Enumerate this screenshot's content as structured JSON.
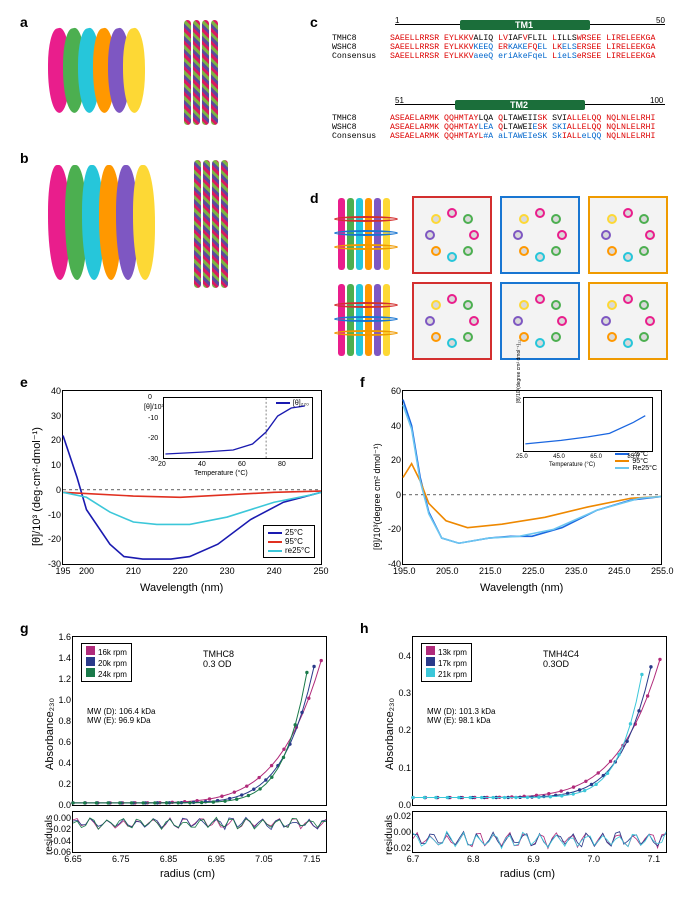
{
  "labels": {
    "a": "a",
    "b": "b",
    "c": "c",
    "d": "d",
    "e": "e",
    "f": "f",
    "g": "g",
    "h": "h"
  },
  "panelC": {
    "block1": {
      "start": "1",
      "end": "50",
      "tm": "TM1",
      "rows": [
        {
          "name": "TMHC8",
          "seq": [
            {
              "t": "SAEELLRRSR EYLKKV",
              "c": "#d00"
            },
            {
              "t": "ALIQ",
              "c": "#000"
            },
            {
              "t": " LV",
              "c": "#d00"
            },
            {
              "t": "IAF",
              "c": "#000"
            },
            {
              "t": "V",
              "c": "#d00"
            },
            {
              "t": "FLIL",
              "c": "#000"
            },
            {
              "t": " L",
              "c": "#d00"
            },
            {
              "t": "ILLS",
              "c": "#000"
            },
            {
              "t": "WRSEE LIRELEEKGA",
              "c": "#d00"
            }
          ]
        },
        {
          "name": "WSHC8",
          "seq": [
            {
              "t": "SAEELLRRSR EYLKKV",
              "c": "#d00"
            },
            {
              "t": "KEEQ",
              "c": "#06c"
            },
            {
              "t": " ER",
              "c": "#d00"
            },
            {
              "t": "KAKE",
              "c": "#06c"
            },
            {
              "t": "FQ",
              "c": "#d00"
            },
            {
              "t": "EL",
              "c": "#06c"
            },
            {
              "t": " LK",
              "c": "#d00"
            },
            {
              "t": "ELS",
              "c": "#06c"
            },
            {
              "t": "ERSEE LIRELEEKGA",
              "c": "#d00"
            }
          ]
        },
        {
          "name": "Consensus",
          "seq": [
            {
              "t": "SAEELLRRSR EYLKKV",
              "c": "#d00"
            },
            {
              "t": "aeeQ",
              "c": "#06c"
            },
            {
              "t": " er",
              "c": "#06c"
            },
            {
              "t": "iAk",
              "c": "#06c"
            },
            {
              "t": "eFq",
              "c": "#06c"
            },
            {
              "t": "eL",
              "c": "#06c"
            },
            {
              "t": " L",
              "c": "#d00"
            },
            {
              "t": "ieLS",
              "c": "#06c"
            },
            {
              "t": "eRSEE LIRELEEKGA",
              "c": "#d00"
            }
          ]
        }
      ]
    },
    "block2": {
      "start": "51",
      "end": "100",
      "tm": "TM2",
      "rows": [
        {
          "name": "TMHC8",
          "seq": [
            {
              "t": "ASEAELARMK QQHMTAY",
              "c": "#d00"
            },
            {
              "t": "LQA",
              "c": "#000"
            },
            {
              "t": " Q",
              "c": "#d00"
            },
            {
              "t": "LTAWEII",
              "c": "#000"
            },
            {
              "t": "SK",
              "c": "#d00"
            },
            {
              "t": " SVI",
              "c": "#000"
            },
            {
              "t": "ALLE",
              "c": "#d00"
            },
            {
              "t": "LQQ NQLNLELRHI",
              "c": "#d00"
            }
          ]
        },
        {
          "name": "WSHC8",
          "seq": [
            {
              "t": "ASEAELARMK QQHMTAY",
              "c": "#d00"
            },
            {
              "t": "LEA",
              "c": "#06c"
            },
            {
              "t": " Q",
              "c": "#d00"
            },
            {
              "t": "LTAWEI",
              "c": "#000"
            },
            {
              "t": "E",
              "c": "#06c"
            },
            {
              "t": "SK",
              "c": "#d00"
            },
            {
              "t": " SKI",
              "c": "#06c"
            },
            {
              "t": "ALLE",
              "c": "#d00"
            },
            {
              "t": "LQQ NQLNLELRHI",
              "c": "#d00"
            }
          ]
        },
        {
          "name": "Consensus",
          "seq": [
            {
              "t": "ASEAELARMK QQHMTAYL",
              "c": "#d00"
            },
            {
              "t": "#A",
              "c": "#06c"
            },
            {
              "t": " ",
              "c": "#000"
            },
            {
              "t": "aLTAWEIeSK",
              "c": "#06c"
            },
            {
              "t": " Sk",
              "c": "#06c"
            },
            {
              "t": "IALL",
              "c": "#d00"
            },
            {
              "t": "eLQQ",
              "c": "#06c"
            },
            {
              "t": " NQLNLELRHI",
              "c": "#d00"
            }
          ]
        }
      ]
    }
  },
  "panelE": {
    "xlabel": "Wavelength (nm)",
    "ylabel": "[θ]/10³ (deg·cm²·dmol⁻¹)",
    "xticks": [
      "195",
      "200",
      "210",
      "220",
      "230",
      "240",
      "250"
    ],
    "yticks": [
      "40",
      "30",
      "20",
      "10",
      "0",
      "-10",
      "-20",
      "-30"
    ],
    "series": [
      {
        "label": "25°C",
        "color": "#1a1ab0",
        "pts": [
          [
            195,
            22
          ],
          [
            198,
            5
          ],
          [
            200,
            -8
          ],
          [
            205,
            -22
          ],
          [
            208,
            -27
          ],
          [
            212,
            -28
          ],
          [
            218,
            -28
          ],
          [
            222,
            -27
          ],
          [
            228,
            -22
          ],
          [
            235,
            -12
          ],
          [
            242,
            -5
          ],
          [
            248,
            -2
          ],
          [
            250,
            -1
          ]
        ]
      },
      {
        "label": "95°C",
        "color": "#e03020",
        "pts": [
          [
            195,
            -1
          ],
          [
            200,
            -1.5
          ],
          [
            210,
            -2.5
          ],
          [
            220,
            -3
          ],
          [
            230,
            -2
          ],
          [
            240,
            -1
          ],
          [
            250,
            -0.5
          ]
        ]
      },
      {
        "label": "re25°C",
        "color": "#3cc7d9",
        "pts": [
          [
            195,
            -1
          ],
          [
            200,
            -3
          ],
          [
            205,
            -9
          ],
          [
            210,
            -13
          ],
          [
            215,
            -14
          ],
          [
            222,
            -14
          ],
          [
            230,
            -11
          ],
          [
            240,
            -5
          ],
          [
            248,
            -2
          ],
          [
            250,
            -1
          ]
        ]
      }
    ],
    "inset": {
      "xlabel": "Temperature (°C)",
      "ylabel": "[θ]/10³",
      "series_label": "[θ]₂₂₀",
      "xticks": [
        "20",
        "40",
        "60",
        "80"
      ],
      "yticks": [
        "0",
        "-10",
        "-20",
        "-30"
      ],
      "pts": [
        [
          20,
          -28
        ],
        [
          40,
          -27
        ],
        [
          55,
          -26
        ],
        [
          65,
          -23
        ],
        [
          72,
          -17
        ],
        [
          78,
          -9
        ],
        [
          85,
          -5
        ],
        [
          92,
          -4
        ]
      ]
    }
  },
  "panelF": {
    "xlabel": "Wavelength (nm)",
    "ylabel": "[θ]/10³(degree cm² dmol⁻¹)",
    "xticks": [
      "195.0",
      "205.0",
      "215.0",
      "225.0",
      "235.0",
      "245.0",
      "255.0"
    ],
    "yticks": [
      "60",
      "40",
      "20",
      "0",
      "-20",
      "-40"
    ],
    "series": [
      {
        "label": "25°C",
        "color": "#1a66e0",
        "pts": [
          [
            195,
            55
          ],
          [
            197,
            40
          ],
          [
            199,
            10
          ],
          [
            201,
            -10
          ],
          [
            204,
            -25
          ],
          [
            208,
            -28
          ],
          [
            215,
            -25
          ],
          [
            220,
            -24
          ],
          [
            225,
            -24
          ],
          [
            232,
            -19
          ],
          [
            240,
            -9
          ],
          [
            248,
            -3
          ],
          [
            255,
            -1
          ]
        ]
      },
      {
        "label": "95°C",
        "color": "#ee8800",
        "pts": [
          [
            195,
            10
          ],
          [
            197,
            18
          ],
          [
            199,
            8
          ],
          [
            201,
            -5
          ],
          [
            205,
            -15
          ],
          [
            210,
            -19
          ],
          [
            218,
            -17
          ],
          [
            228,
            -13
          ],
          [
            238,
            -7
          ],
          [
            248,
            -2
          ],
          [
            255,
            -1
          ]
        ]
      },
      {
        "label": "Re25°C",
        "color": "#6cc6f0",
        "pts": [
          [
            195,
            52
          ],
          [
            197,
            38
          ],
          [
            199,
            8
          ],
          [
            201,
            -11
          ],
          [
            204,
            -25
          ],
          [
            208,
            -28
          ],
          [
            215,
            -25
          ],
          [
            222,
            -24
          ],
          [
            230,
            -20
          ],
          [
            240,
            -9
          ],
          [
            250,
            -2
          ],
          [
            255,
            -1
          ]
        ]
      }
    ],
    "inset": {
      "xlabel": "Temperature (°C)",
      "ylabel": "[θ]/10³(degree cm² dmol⁻¹)₂₂",
      "xticks": [
        "25.0",
        "45.0",
        "65.0",
        "85.0"
      ],
      "pts": [
        [
          25,
          -28
        ],
        [
          45,
          -27
        ],
        [
          60,
          -26
        ],
        [
          72,
          -25
        ],
        [
          85,
          -22
        ],
        [
          92,
          -20
        ]
      ]
    }
  },
  "panelG": {
    "xlabel": "radius (cm)",
    "ylabel": "Absorbance₂₃₀",
    "y2label": "residuals",
    "title": "TMHC8",
    "sub": "0.3 OD",
    "mwD": "MW (D): 106.4 kDa",
    "mwE": "MW (E): 96.9 kDa",
    "xticks": [
      "6.65",
      "6.75",
      "6.85",
      "6.95",
      "7.05",
      "7.15"
    ],
    "yticks": [
      "1.6",
      "1.4",
      "1.2",
      "1.0",
      "0.8",
      "0.6",
      "0.4",
      "0.2",
      "0.0"
    ],
    "rticks": [
      "0.00",
      "-0.02",
      "-0.04",
      "-0.06"
    ],
    "legend": [
      {
        "label": "16k rpm",
        "color": "#b02a7a"
      },
      {
        "label": "20k rpm",
        "color": "#2a3a8a"
      },
      {
        "label": "24k rpm",
        "color": "#1a7a4a"
      }
    ]
  },
  "panelH": {
    "xlabel": "radius (cm)",
    "ylabel": "Absorbance₂₃₀",
    "y2label": "residuals",
    "title": "TMH4C4",
    "sub": "0.3OD",
    "mwD": "MW (D): 101.3 kDa",
    "mwE": "MW (E): 98.1 kDa",
    "xticks": [
      "6.7",
      "6.8",
      "6.9",
      "7.0",
      "7.1"
    ],
    "yticks": [
      "0.4",
      "0.3",
      "0.2",
      "0.1",
      "0.0"
    ],
    "rticks": [
      "0.02",
      "0.00",
      "-0.02"
    ],
    "legend": [
      {
        "label": "13k rpm",
        "color": "#b02a7a"
      },
      {
        "label": "17k rpm",
        "color": "#2a3a8a"
      },
      {
        "label": "21k rpm",
        "color": "#3cc7d9"
      }
    ]
  },
  "colors": {
    "blob": [
      "#e91e8c",
      "#4caf50",
      "#26c6da",
      "#ff9800",
      "#7e57c2",
      "#fdd835"
    ]
  }
}
